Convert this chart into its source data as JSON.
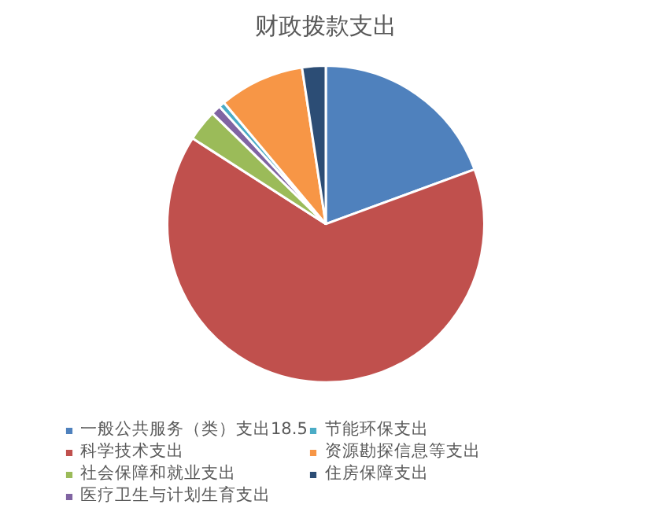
{
  "chart_data": {
    "type": "pie",
    "title": "财政拨款支出",
    "categories": [
      "一般公共服务（类）支出18.5",
      "科学技术支出",
      "社会保障和就业支出",
      "医疗卫生与计划生育支出",
      "节能环保支出",
      "资源勘探信息等支出",
      "住房保障支出"
    ],
    "values": [
      19.4,
      64.7,
      3.2,
      1.0,
      0.6,
      8.7,
      2.4
    ],
    "colors": [
      "#4f81bd",
      "#c0504d",
      "#9bbb59",
      "#8064a2",
      "#4bacc6",
      "#f79646",
      "#2c4d75"
    ],
    "legend": "bottom"
  }
}
